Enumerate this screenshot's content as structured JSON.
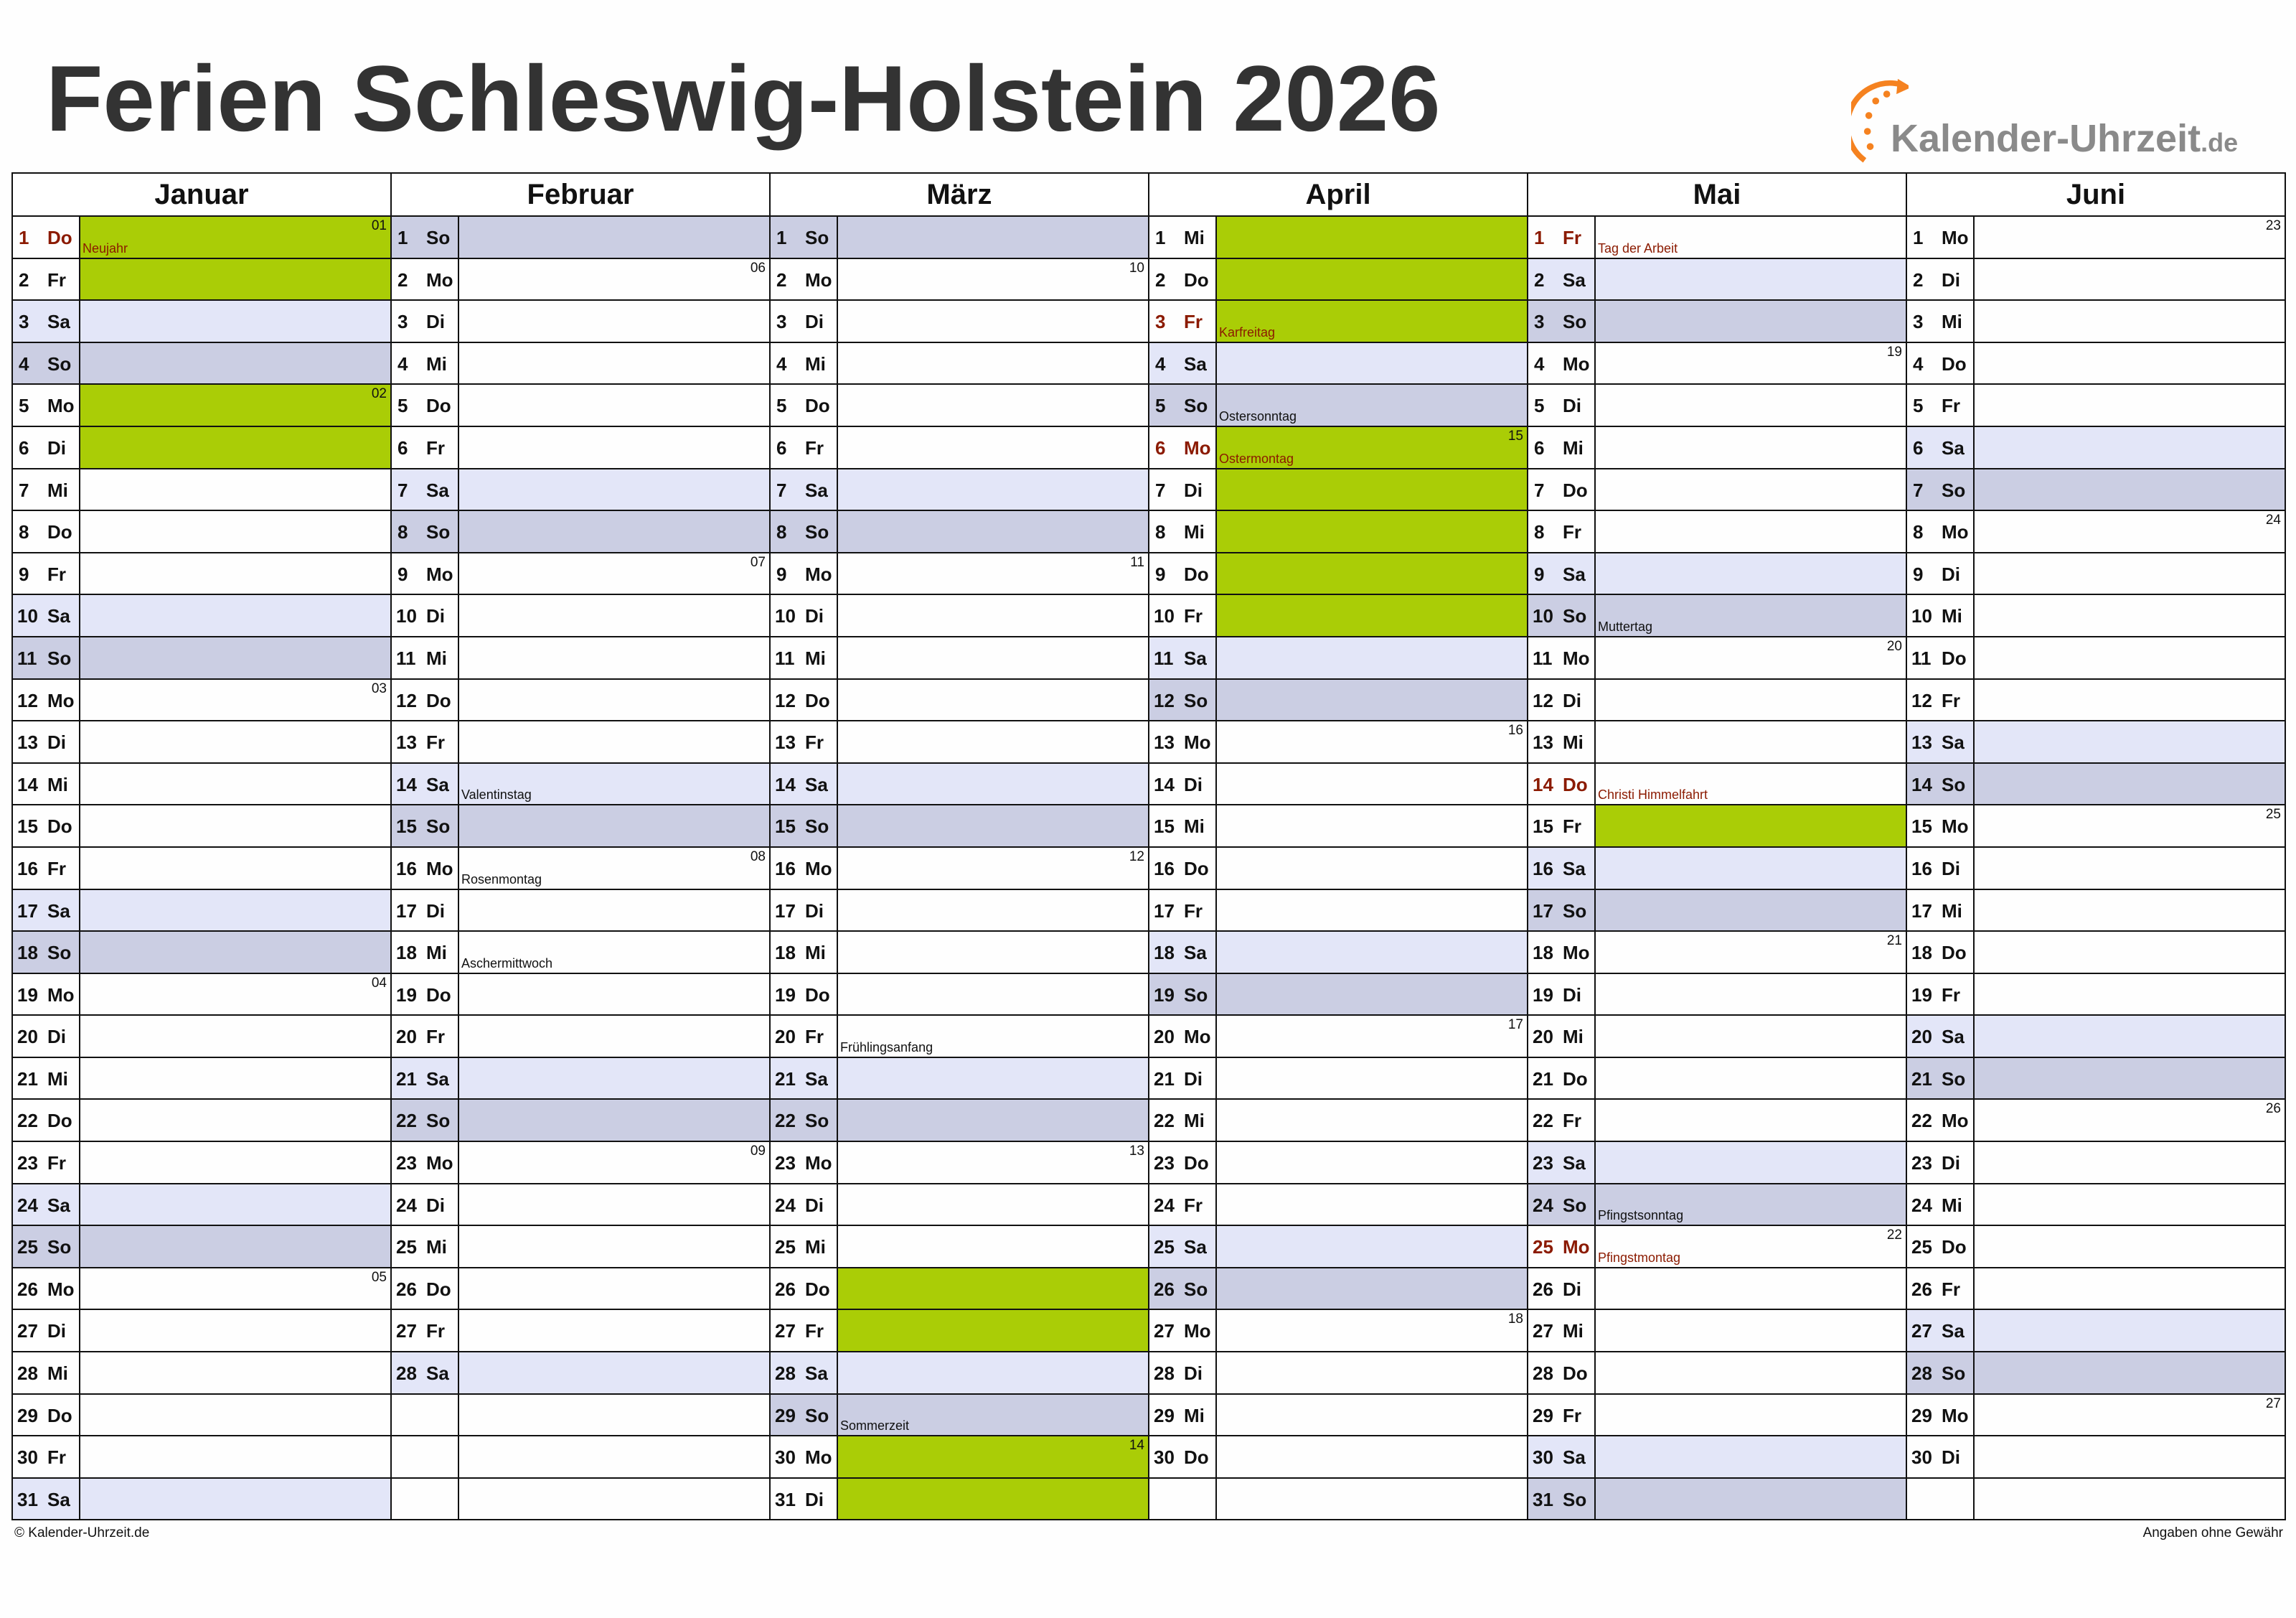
{
  "title": "Ferien Schleswig-Holstein 2026",
  "logo": {
    "text": "Kalender-Uhrzeit",
    "suffix": ".de"
  },
  "colors": {
    "saturday": "#e3e6f8",
    "sunday": "#cbcee3",
    "school_holiday": "#aacd06",
    "public_holiday_text": "#8b1a00"
  },
  "footer": {
    "left": "© Kalender-Uhrzeit.de",
    "right": "Angaben ohne Gewähr"
  },
  "months": [
    {
      "name": "Januar",
      "days": [
        [
          1,
          "Do",
          "Neujahr",
          "01",
          "gr"
        ],
        [
          2,
          "Fr",
          "",
          "",
          "g"
        ],
        [
          3,
          "Sa",
          "",
          "",
          ""
        ],
        [
          4,
          "So",
          "",
          "",
          ""
        ],
        [
          5,
          "Mo",
          "",
          "02",
          "g"
        ],
        [
          6,
          "Di",
          "",
          "",
          "g"
        ],
        [
          7,
          "Mi",
          "",
          "",
          ""
        ],
        [
          8,
          "Do",
          "",
          "",
          ""
        ],
        [
          9,
          "Fr",
          "",
          "",
          ""
        ],
        [
          10,
          "Sa",
          "",
          "",
          ""
        ],
        [
          11,
          "So",
          "",
          "",
          ""
        ],
        [
          12,
          "Mo",
          "",
          "03",
          ""
        ],
        [
          13,
          "Di",
          "",
          "",
          ""
        ],
        [
          14,
          "Mi",
          "",
          "",
          ""
        ],
        [
          15,
          "Do",
          "",
          "",
          ""
        ],
        [
          16,
          "Fr",
          "",
          "",
          ""
        ],
        [
          17,
          "Sa",
          "",
          "",
          ""
        ],
        [
          18,
          "So",
          "",
          "",
          ""
        ],
        [
          19,
          "Mo",
          "",
          "04",
          ""
        ],
        [
          20,
          "Di",
          "",
          "",
          ""
        ],
        [
          21,
          "Mi",
          "",
          "",
          ""
        ],
        [
          22,
          "Do",
          "",
          "",
          ""
        ],
        [
          23,
          "Fr",
          "",
          "",
          ""
        ],
        [
          24,
          "Sa",
          "",
          "",
          ""
        ],
        [
          25,
          "So",
          "",
          "",
          ""
        ],
        [
          26,
          "Mo",
          "",
          "05",
          ""
        ],
        [
          27,
          "Di",
          "",
          "",
          ""
        ],
        [
          28,
          "Mi",
          "",
          "",
          ""
        ],
        [
          29,
          "Do",
          "",
          "",
          ""
        ],
        [
          30,
          "Fr",
          "",
          "",
          ""
        ],
        [
          31,
          "Sa",
          "",
          "",
          ""
        ]
      ]
    },
    {
      "name": "Februar",
      "days": [
        [
          1,
          "So",
          "",
          "",
          ""
        ],
        [
          2,
          "Mo",
          "",
          "06",
          ""
        ],
        [
          3,
          "Di",
          "",
          "",
          ""
        ],
        [
          4,
          "Mi",
          "",
          "",
          ""
        ],
        [
          5,
          "Do",
          "",
          "",
          ""
        ],
        [
          6,
          "Fr",
          "",
          "",
          ""
        ],
        [
          7,
          "Sa",
          "",
          "",
          ""
        ],
        [
          8,
          "So",
          "",
          "",
          ""
        ],
        [
          9,
          "Mo",
          "",
          "07",
          ""
        ],
        [
          10,
          "Di",
          "",
          "",
          ""
        ],
        [
          11,
          "Mi",
          "",
          "",
          ""
        ],
        [
          12,
          "Do",
          "",
          "",
          ""
        ],
        [
          13,
          "Fr",
          "",
          "",
          ""
        ],
        [
          14,
          "Sa",
          "Valentinstag",
          "",
          ""
        ],
        [
          15,
          "So",
          "",
          "",
          ""
        ],
        [
          16,
          "Mo",
          "Rosenmontag",
          "08",
          ""
        ],
        [
          17,
          "Di",
          "",
          "",
          ""
        ],
        [
          18,
          "Mi",
          "Aschermittwoch",
          "",
          ""
        ],
        [
          19,
          "Do",
          "",
          "",
          ""
        ],
        [
          20,
          "Fr",
          "",
          "",
          ""
        ],
        [
          21,
          "Sa",
          "",
          "",
          ""
        ],
        [
          22,
          "So",
          "",
          "",
          ""
        ],
        [
          23,
          "Mo",
          "",
          "09",
          ""
        ],
        [
          24,
          "Di",
          "",
          "",
          ""
        ],
        [
          25,
          "Mi",
          "",
          "",
          ""
        ],
        [
          26,
          "Do",
          "",
          "",
          ""
        ],
        [
          27,
          "Fr",
          "",
          "",
          ""
        ],
        [
          28,
          "Sa",
          "",
          "",
          ""
        ]
      ]
    },
    {
      "name": "März",
      "days": [
        [
          1,
          "So",
          "",
          "",
          ""
        ],
        [
          2,
          "Mo",
          "",
          "10",
          ""
        ],
        [
          3,
          "Di",
          "",
          "",
          ""
        ],
        [
          4,
          "Mi",
          "",
          "",
          ""
        ],
        [
          5,
          "Do",
          "",
          "",
          ""
        ],
        [
          6,
          "Fr",
          "",
          "",
          ""
        ],
        [
          7,
          "Sa",
          "",
          "",
          ""
        ],
        [
          8,
          "So",
          "",
          "",
          ""
        ],
        [
          9,
          "Mo",
          "",
          "11",
          ""
        ],
        [
          10,
          "Di",
          "",
          "",
          ""
        ],
        [
          11,
          "Mi",
          "",
          "",
          ""
        ],
        [
          12,
          "Do",
          "",
          "",
          ""
        ],
        [
          13,
          "Fr",
          "",
          "",
          ""
        ],
        [
          14,
          "Sa",
          "",
          "",
          ""
        ],
        [
          15,
          "So",
          "",
          "",
          ""
        ],
        [
          16,
          "Mo",
          "",
          "12",
          ""
        ],
        [
          17,
          "Di",
          "",
          "",
          ""
        ],
        [
          18,
          "Mi",
          "",
          "",
          ""
        ],
        [
          19,
          "Do",
          "",
          "",
          ""
        ],
        [
          20,
          "Fr",
          "Frühlingsanfang",
          "",
          ""
        ],
        [
          21,
          "Sa",
          "",
          "",
          ""
        ],
        [
          22,
          "So",
          "",
          "",
          ""
        ],
        [
          23,
          "Mo",
          "",
          "13",
          ""
        ],
        [
          24,
          "Di",
          "",
          "",
          ""
        ],
        [
          25,
          "Mi",
          "",
          "",
          ""
        ],
        [
          26,
          "Do",
          "",
          "",
          "g"
        ],
        [
          27,
          "Fr",
          "",
          "",
          "g"
        ],
        [
          28,
          "Sa",
          "",
          "",
          ""
        ],
        [
          29,
          "So",
          "Sommerzeit",
          "",
          ""
        ],
        [
          30,
          "Mo",
          "",
          "14",
          "g"
        ],
        [
          31,
          "Di",
          "",
          "",
          "g"
        ]
      ]
    },
    {
      "name": "April",
      "days": [
        [
          1,
          "Mi",
          "",
          "",
          "g"
        ],
        [
          2,
          "Do",
          "",
          "",
          "g"
        ],
        [
          3,
          "Fr",
          "Karfreitag",
          "",
          "gr"
        ],
        [
          4,
          "Sa",
          "",
          "",
          ""
        ],
        [
          5,
          "So",
          "Ostersonntag",
          "",
          ""
        ],
        [
          6,
          "Mo",
          "Ostermontag",
          "15",
          "gr"
        ],
        [
          7,
          "Di",
          "",
          "",
          "g"
        ],
        [
          8,
          "Mi",
          "",
          "",
          "g"
        ],
        [
          9,
          "Do",
          "",
          "",
          "g"
        ],
        [
          10,
          "Fr",
          "",
          "",
          "g"
        ],
        [
          11,
          "Sa",
          "",
          "",
          ""
        ],
        [
          12,
          "So",
          "",
          "",
          ""
        ],
        [
          13,
          "Mo",
          "",
          "16",
          ""
        ],
        [
          14,
          "Di",
          "",
          "",
          ""
        ],
        [
          15,
          "Mi",
          "",
          "",
          ""
        ],
        [
          16,
          "Do",
          "",
          "",
          ""
        ],
        [
          17,
          "Fr",
          "",
          "",
          ""
        ],
        [
          18,
          "Sa",
          "",
          "",
          ""
        ],
        [
          19,
          "So",
          "",
          "",
          ""
        ],
        [
          20,
          "Mo",
          "",
          "17",
          ""
        ],
        [
          21,
          "Di",
          "",
          "",
          ""
        ],
        [
          22,
          "Mi",
          "",
          "",
          ""
        ],
        [
          23,
          "Do",
          "",
          "",
          ""
        ],
        [
          24,
          "Fr",
          "",
          "",
          ""
        ],
        [
          25,
          "Sa",
          "",
          "",
          ""
        ],
        [
          26,
          "So",
          "",
          "",
          ""
        ],
        [
          27,
          "Mo",
          "",
          "18",
          ""
        ],
        [
          28,
          "Di",
          "",
          "",
          ""
        ],
        [
          29,
          "Mi",
          "",
          "",
          ""
        ],
        [
          30,
          "Do",
          "",
          "",
          ""
        ]
      ]
    },
    {
      "name": "Mai",
      "days": [
        [
          1,
          "Fr",
          "Tag der Arbeit",
          "",
          "r"
        ],
        [
          2,
          "Sa",
          "",
          "",
          ""
        ],
        [
          3,
          "So",
          "",
          "",
          ""
        ],
        [
          4,
          "Mo",
          "",
          "19",
          ""
        ],
        [
          5,
          "Di",
          "",
          "",
          ""
        ],
        [
          6,
          "Mi",
          "",
          "",
          ""
        ],
        [
          7,
          "Do",
          "",
          "",
          ""
        ],
        [
          8,
          "Fr",
          "",
          "",
          ""
        ],
        [
          9,
          "Sa",
          "",
          "",
          ""
        ],
        [
          10,
          "So",
          "Muttertag",
          "",
          ""
        ],
        [
          11,
          "Mo",
          "",
          "20",
          ""
        ],
        [
          12,
          "Di",
          "",
          "",
          ""
        ],
        [
          13,
          "Mi",
          "",
          "",
          ""
        ],
        [
          14,
          "Do",
          "Christi Himmelfahrt",
          "",
          "r"
        ],
        [
          15,
          "Fr",
          "",
          "",
          "g"
        ],
        [
          16,
          "Sa",
          "",
          "",
          ""
        ],
        [
          17,
          "So",
          "",
          "",
          ""
        ],
        [
          18,
          "Mo",
          "",
          "21",
          ""
        ],
        [
          19,
          "Di",
          "",
          "",
          ""
        ],
        [
          20,
          "Mi",
          "",
          "",
          ""
        ],
        [
          21,
          "Do",
          "",
          "",
          ""
        ],
        [
          22,
          "Fr",
          "",
          "",
          ""
        ],
        [
          23,
          "Sa",
          "",
          "",
          ""
        ],
        [
          24,
          "So",
          "Pfingstsonntag",
          "",
          ""
        ],
        [
          25,
          "Mo",
          "Pfingstmontag",
          "22",
          "r"
        ],
        [
          26,
          "Di",
          "",
          "",
          ""
        ],
        [
          27,
          "Mi",
          "",
          "",
          ""
        ],
        [
          28,
          "Do",
          "",
          "",
          ""
        ],
        [
          29,
          "Fr",
          "",
          "",
          ""
        ],
        [
          30,
          "Sa",
          "",
          "",
          ""
        ],
        [
          31,
          "So",
          "",
          "",
          ""
        ]
      ]
    },
    {
      "name": "Juni",
      "days": [
        [
          1,
          "Mo",
          "",
          "23",
          ""
        ],
        [
          2,
          "Di",
          "",
          "",
          ""
        ],
        [
          3,
          "Mi",
          "",
          "",
          ""
        ],
        [
          4,
          "Do",
          "",
          "",
          ""
        ],
        [
          5,
          "Fr",
          "",
          "",
          ""
        ],
        [
          6,
          "Sa",
          "",
          "",
          ""
        ],
        [
          7,
          "So",
          "",
          "",
          ""
        ],
        [
          8,
          "Mo",
          "",
          "24",
          ""
        ],
        [
          9,
          "Di",
          "",
          "",
          ""
        ],
        [
          10,
          "Mi",
          "",
          "",
          ""
        ],
        [
          11,
          "Do",
          "",
          "",
          ""
        ],
        [
          12,
          "Fr",
          "",
          "",
          ""
        ],
        [
          13,
          "Sa",
          "",
          "",
          ""
        ],
        [
          14,
          "So",
          "",
          "",
          ""
        ],
        [
          15,
          "Mo",
          "",
          "25",
          ""
        ],
        [
          16,
          "Di",
          "",
          "",
          ""
        ],
        [
          17,
          "Mi",
          "",
          "",
          ""
        ],
        [
          18,
          "Do",
          "",
          "",
          ""
        ],
        [
          19,
          "Fr",
          "",
          "",
          ""
        ],
        [
          20,
          "Sa",
          "",
          "",
          ""
        ],
        [
          21,
          "So",
          "",
          "",
          ""
        ],
        [
          22,
          "Mo",
          "",
          "26",
          ""
        ],
        [
          23,
          "Di",
          "",
          "",
          ""
        ],
        [
          24,
          "Mi",
          "",
          "",
          ""
        ],
        [
          25,
          "Do",
          "",
          "",
          ""
        ],
        [
          26,
          "Fr",
          "",
          "",
          ""
        ],
        [
          27,
          "Sa",
          "",
          "",
          ""
        ],
        [
          28,
          "So",
          "",
          "",
          ""
        ],
        [
          29,
          "Mo",
          "",
          "27",
          ""
        ],
        [
          30,
          "Di",
          "",
          "",
          ""
        ]
      ]
    }
  ]
}
